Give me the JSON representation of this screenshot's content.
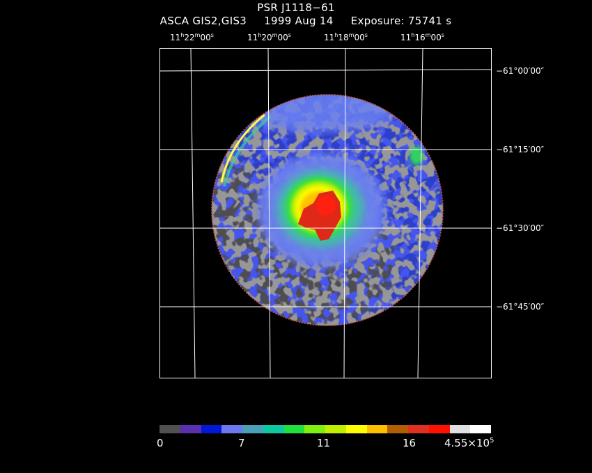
{
  "header": {
    "object": "PSR J1118−61",
    "instrument": "ASCA GIS2,GIS3",
    "date": "1999 Aug 14",
    "exposure": "Exposure: 75741 s"
  },
  "ra_labels": [
    {
      "h": "11",
      "m": "22",
      "s": "00"
    },
    {
      "h": "11",
      "m": "20",
      "s": "00"
    },
    {
      "h": "11",
      "m": "18",
      "s": "00"
    },
    {
      "h": "11",
      "m": "16",
      "s": "00"
    }
  ],
  "dec_labels": [
    "−61°00′00″",
    "−61°15′00″",
    "−61°30′00″",
    "−61°45′00″"
  ],
  "colorbar": {
    "colors": [
      "#505050",
      "#5a2fb0",
      "#0018d8",
      "#6c78f0",
      "#4aa0b8",
      "#10c8a0",
      "#20e040",
      "#80f010",
      "#c0f000",
      "#ffff00",
      "#ffc000",
      "#b06000",
      "#e03020",
      "#ff1000",
      "#e0e0e0",
      "#ffffff"
    ],
    "labels": [
      "0",
      "7",
      "11",
      "16",
      "4.55×10"
    ],
    "label_sup": "5"
  }
}
